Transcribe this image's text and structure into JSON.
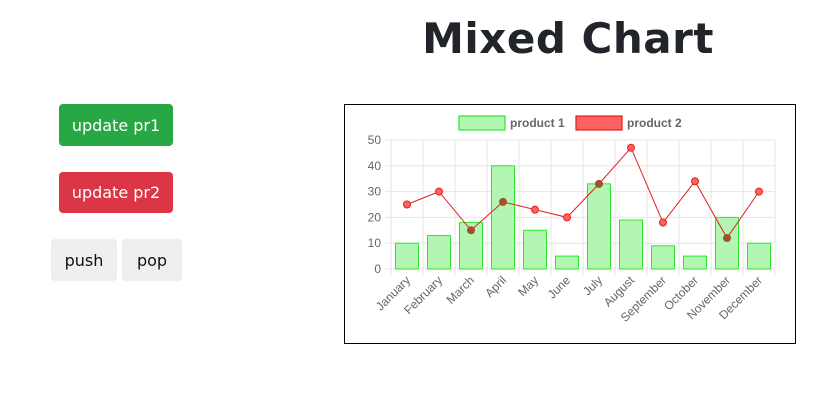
{
  "page": {
    "title": "Mixed Chart"
  },
  "controls": {
    "update_pr1": "update pr1",
    "update_pr2": "update pr2",
    "push": "push",
    "pop": "pop"
  },
  "colors": {
    "product1_fill": "#b3f5b3",
    "product1_border": "#2ee62e",
    "product2_fill": "#ff6161",
    "product2_line": "#e02020",
    "point_dark": "#a0522d",
    "grid": "#e6e6e6",
    "tick": "#666666"
  },
  "chart_data": {
    "type": "bar",
    "title": "",
    "xlabel": "",
    "ylabel": "",
    "ylim": [
      0,
      50
    ],
    "yticks": [
      0,
      10,
      20,
      30,
      40,
      50
    ],
    "categories": [
      "January",
      "February",
      "March",
      "April",
      "May",
      "June",
      "July",
      "August",
      "September",
      "October",
      "November",
      "December"
    ],
    "series": [
      {
        "name": "product 1",
        "type": "bar",
        "values": [
          10,
          13,
          18,
          40,
          15,
          5,
          33,
          19,
          9,
          5,
          20,
          10
        ]
      },
      {
        "name": "product 2",
        "type": "line",
        "values": [
          25,
          30,
          15,
          26,
          23,
          20,
          33,
          47,
          18,
          34,
          12,
          30
        ]
      }
    ],
    "legend_position": "top"
  }
}
